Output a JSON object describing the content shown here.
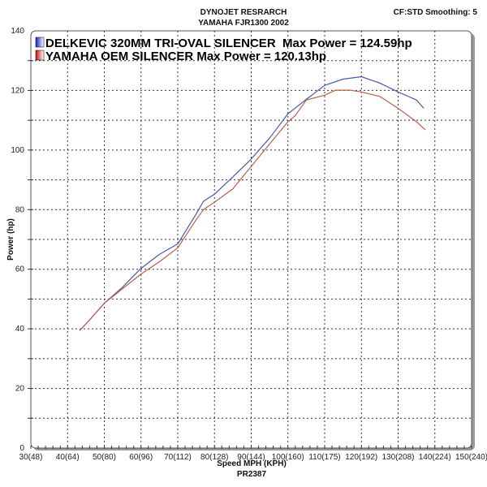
{
  "header": {
    "title_line1": "DYNOJET RESRARCH",
    "title_line2": "YAMAHA FJR1300 2002",
    "correction": "CF:STD Smoothing: 5"
  },
  "chart_data": {
    "type": "line",
    "xlabel": "Speed MPH (KPH)",
    "xlabel2": "PR2387",
    "ylabel": "Power (hp)",
    "xlim": [
      30,
      150
    ],
    "ylim": [
      0,
      140
    ],
    "grid": true,
    "legend_placement": "top-left",
    "x_ticks": [
      30,
      40,
      50,
      60,
      70,
      80,
      90,
      100,
      110,
      120,
      130,
      140,
      150
    ],
    "x_tick_labels": [
      "30(48)",
      "40(64)",
      "50(80)",
      "60(96)",
      "70(112)",
      "80(128)",
      "90(144)",
      "100(160)",
      "110(175)",
      "120(192)",
      "130(208)",
      "140(224)",
      "150(240)"
    ],
    "y_ticks": [
      0,
      20,
      40,
      60,
      80,
      100,
      120,
      140
    ],
    "y_tick_labels": [
      "0",
      "20",
      "40",
      "60",
      "80",
      "100",
      "120",
      "140"
    ],
    "series": [
      {
        "name": "DELKEVIC 320MM TRI-OVAL SILENCER  Max Power = 124.59hp",
        "color": "#4a5aa8",
        "x": [
          43.3,
          46,
          50,
          55,
          60,
          65,
          70,
          75,
          77,
          80,
          85,
          90,
          95,
          100,
          105,
          110,
          115,
          120,
          125,
          130,
          135,
          137
        ],
        "y": [
          39.4,
          43,
          48.6,
          54,
          60.3,
          65,
          68.5,
          78.5,
          82.8,
          85.2,
          91,
          97,
          104,
          112.2,
          117,
          121.7,
          123.8,
          124.6,
          122.5,
          119.5,
          116.8,
          114
        ]
      },
      {
        "name": "YAMAHA OEM SILENCER Max Power = 120.13hp",
        "color": "#b8604a",
        "x": [
          43.3,
          46,
          50,
          55,
          60,
          65,
          70,
          75,
          77,
          80,
          85,
          90,
          95,
          100,
          102,
          105,
          110,
          113,
          117,
          120,
          125,
          130,
          135,
          137.4
        ],
        "y": [
          39.4,
          43,
          48.6,
          53.5,
          58.4,
          62.5,
          67.2,
          76.6,
          80,
          82.5,
          87,
          94.5,
          102,
          109.5,
          111.6,
          116.8,
          118.4,
          120.1,
          120.1,
          119.5,
          118,
          114,
          109.5,
          106.8
        ]
      }
    ]
  }
}
